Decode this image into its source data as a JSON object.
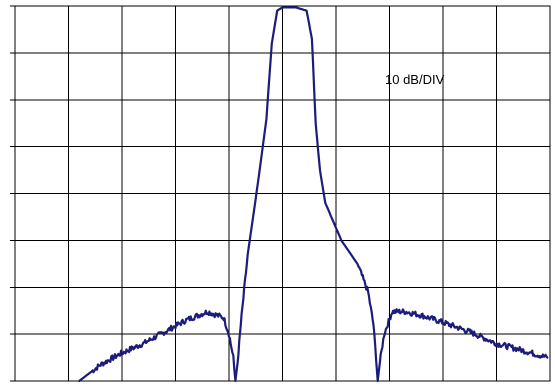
{
  "chart_data": {
    "type": "line",
    "title": "",
    "xlabel": "",
    "ylabel": "",
    "annotation": "10 dB/DIV",
    "grid": true,
    "x_divisions": 10,
    "y_divisions": 8,
    "xlim": [
      0,
      10
    ],
    "ylim": [
      -80,
      0
    ],
    "series": [
      {
        "color": "#1c1c7c",
        "x": [
          1.2,
          1.6,
          2.0,
          2.4,
          2.8,
          3.2,
          3.6,
          3.9,
          4.0,
          4.08,
          4.12,
          4.16,
          4.22,
          4.35,
          4.55,
          4.7,
          4.8,
          4.9,
          5.0,
          5.25,
          5.45,
          5.55,
          5.62,
          5.7,
          5.8,
          6.1,
          6.4,
          6.6,
          6.7,
          6.75,
          6.78,
          6.82,
          6.9,
          7.05,
          7.3,
          7.6,
          8.0,
          8.5,
          9.0,
          9.5,
          9.95
        ],
        "y": [
          -80,
          -76.5,
          -74,
          -72,
          -69.5,
          -67,
          -65.2,
          -66.5,
          -70,
          -75,
          -80,
          -76,
          -68,
          -53,
          -37,
          -24,
          -8,
          -1,
          -0.3,
          -0.3,
          -1,
          -7,
          -25,
          -35,
          -42,
          -50,
          -55,
          -61,
          -68,
          -75,
          -80,
          -76,
          -70,
          -65.2,
          -65.2,
          -66,
          -67.5,
          -69.5,
          -72,
          -73.5,
          -75
        ]
      }
    ]
  }
}
